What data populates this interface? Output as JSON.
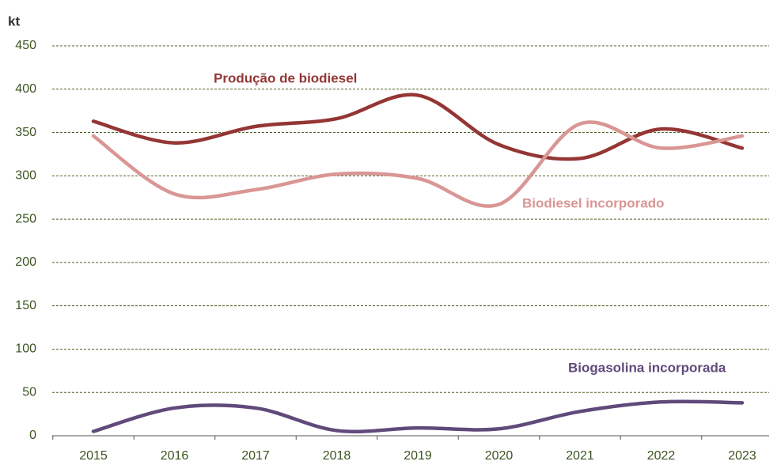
{
  "chart_data": {
    "type": "line",
    "y_label": "kt",
    "categories": [
      "2015",
      "2016",
      "2017",
      "2018",
      "2019",
      "2020",
      "2021",
      "2022",
      "2023"
    ],
    "series": [
      {
        "name": "Produção de biodiesel",
        "color": "#943634",
        "values": [
          363,
          338,
          357,
          366,
          393,
          336,
          320,
          354,
          332
        ]
      },
      {
        "name": "Biodiesel incorporado",
        "color": "#d99694",
        "values": [
          346,
          279,
          284,
          302,
          297,
          267,
          360,
          332,
          346
        ]
      },
      {
        "name": "Biogasolina incorporada",
        "color": "#604a7b",
        "values": [
          5,
          32,
          32,
          6,
          9,
          8,
          28,
          39,
          38
        ]
      }
    ],
    "ylim": [
      0,
      450
    ],
    "yticks": [
      0,
      50,
      100,
      150,
      200,
      250,
      300,
      350,
      400,
      450
    ],
    "grid": true
  }
}
